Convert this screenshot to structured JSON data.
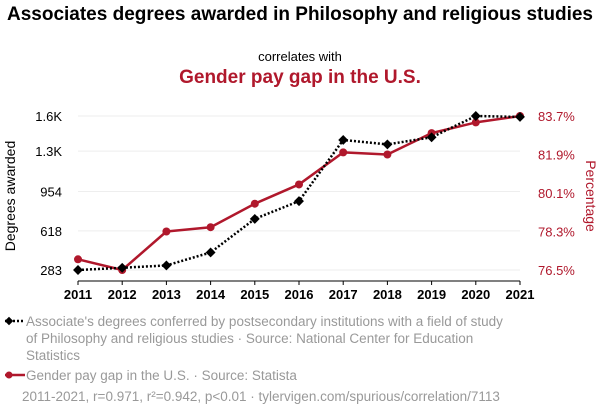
{
  "header": {
    "title": "Associates degrees awarded in Philosophy and religious studies",
    "subtitle": "correlates with",
    "title2": "Gender pay gap in the U.S."
  },
  "chart_data": {
    "type": "line",
    "x": [
      2011,
      2012,
      2013,
      2014,
      2015,
      2016,
      2017,
      2018,
      2019,
      2020,
      2021
    ],
    "series": [
      {
        "name": "Associate's degrees conferred by postsecondary institutions with a field of study of Philosophy and religious studies · Source: National Center for Education Statistics",
        "axis": "left",
        "color": "#000000",
        "style": "dotted",
        "marker": "diamond",
        "values": [
          283,
          302,
          322,
          433,
          720,
          872,
          1395,
          1357,
          1418,
          1600,
          1592
        ]
      },
      {
        "name": "Gender pay gap in the U.S. · Source: Statista",
        "axis": "right",
        "color": "#b0182c",
        "style": "solid",
        "marker": "circle",
        "values": [
          77.0,
          76.5,
          78.3,
          78.5,
          79.6,
          80.5,
          82.0,
          81.9,
          82.9,
          83.4,
          83.7
        ]
      }
    ],
    "y_left": {
      "label": "Degrees awarded",
      "ticks": [
        283,
        618,
        954,
        1300,
        1600
      ],
      "tick_labels": [
        "283",
        "618",
        "954",
        "1.3K",
        "1.6K"
      ],
      "ylim": [
        283,
        1625
      ]
    },
    "y_right": {
      "label": "Percentage",
      "ticks": [
        76.5,
        78.3,
        80.1,
        81.9,
        83.7
      ],
      "tick_labels": [
        "76.5%",
        "78.3%",
        "80.1%",
        "81.9%",
        "83.7%"
      ],
      "ylim": [
        76.5,
        83.7
      ]
    },
    "x_tick_labels": [
      "2011",
      "2012",
      "2013",
      "2014",
      "2015",
      "2016",
      "2017",
      "2018",
      "2019",
      "2020",
      "2021"
    ],
    "grid": true,
    "legend_position": "bottom"
  },
  "legend": {
    "series1": "Associate's degrees conferred by postsecondary institutions with a field of study of Philosophy and religious studies · Source: National Center for Education Statistics",
    "series2": "Gender pay gap in the U.S. · Source: Statista"
  },
  "footer": "2011-2021, r=0.971, r²=0.942, p<0.01 · tylervigen.com/spurious/correlation/7113"
}
